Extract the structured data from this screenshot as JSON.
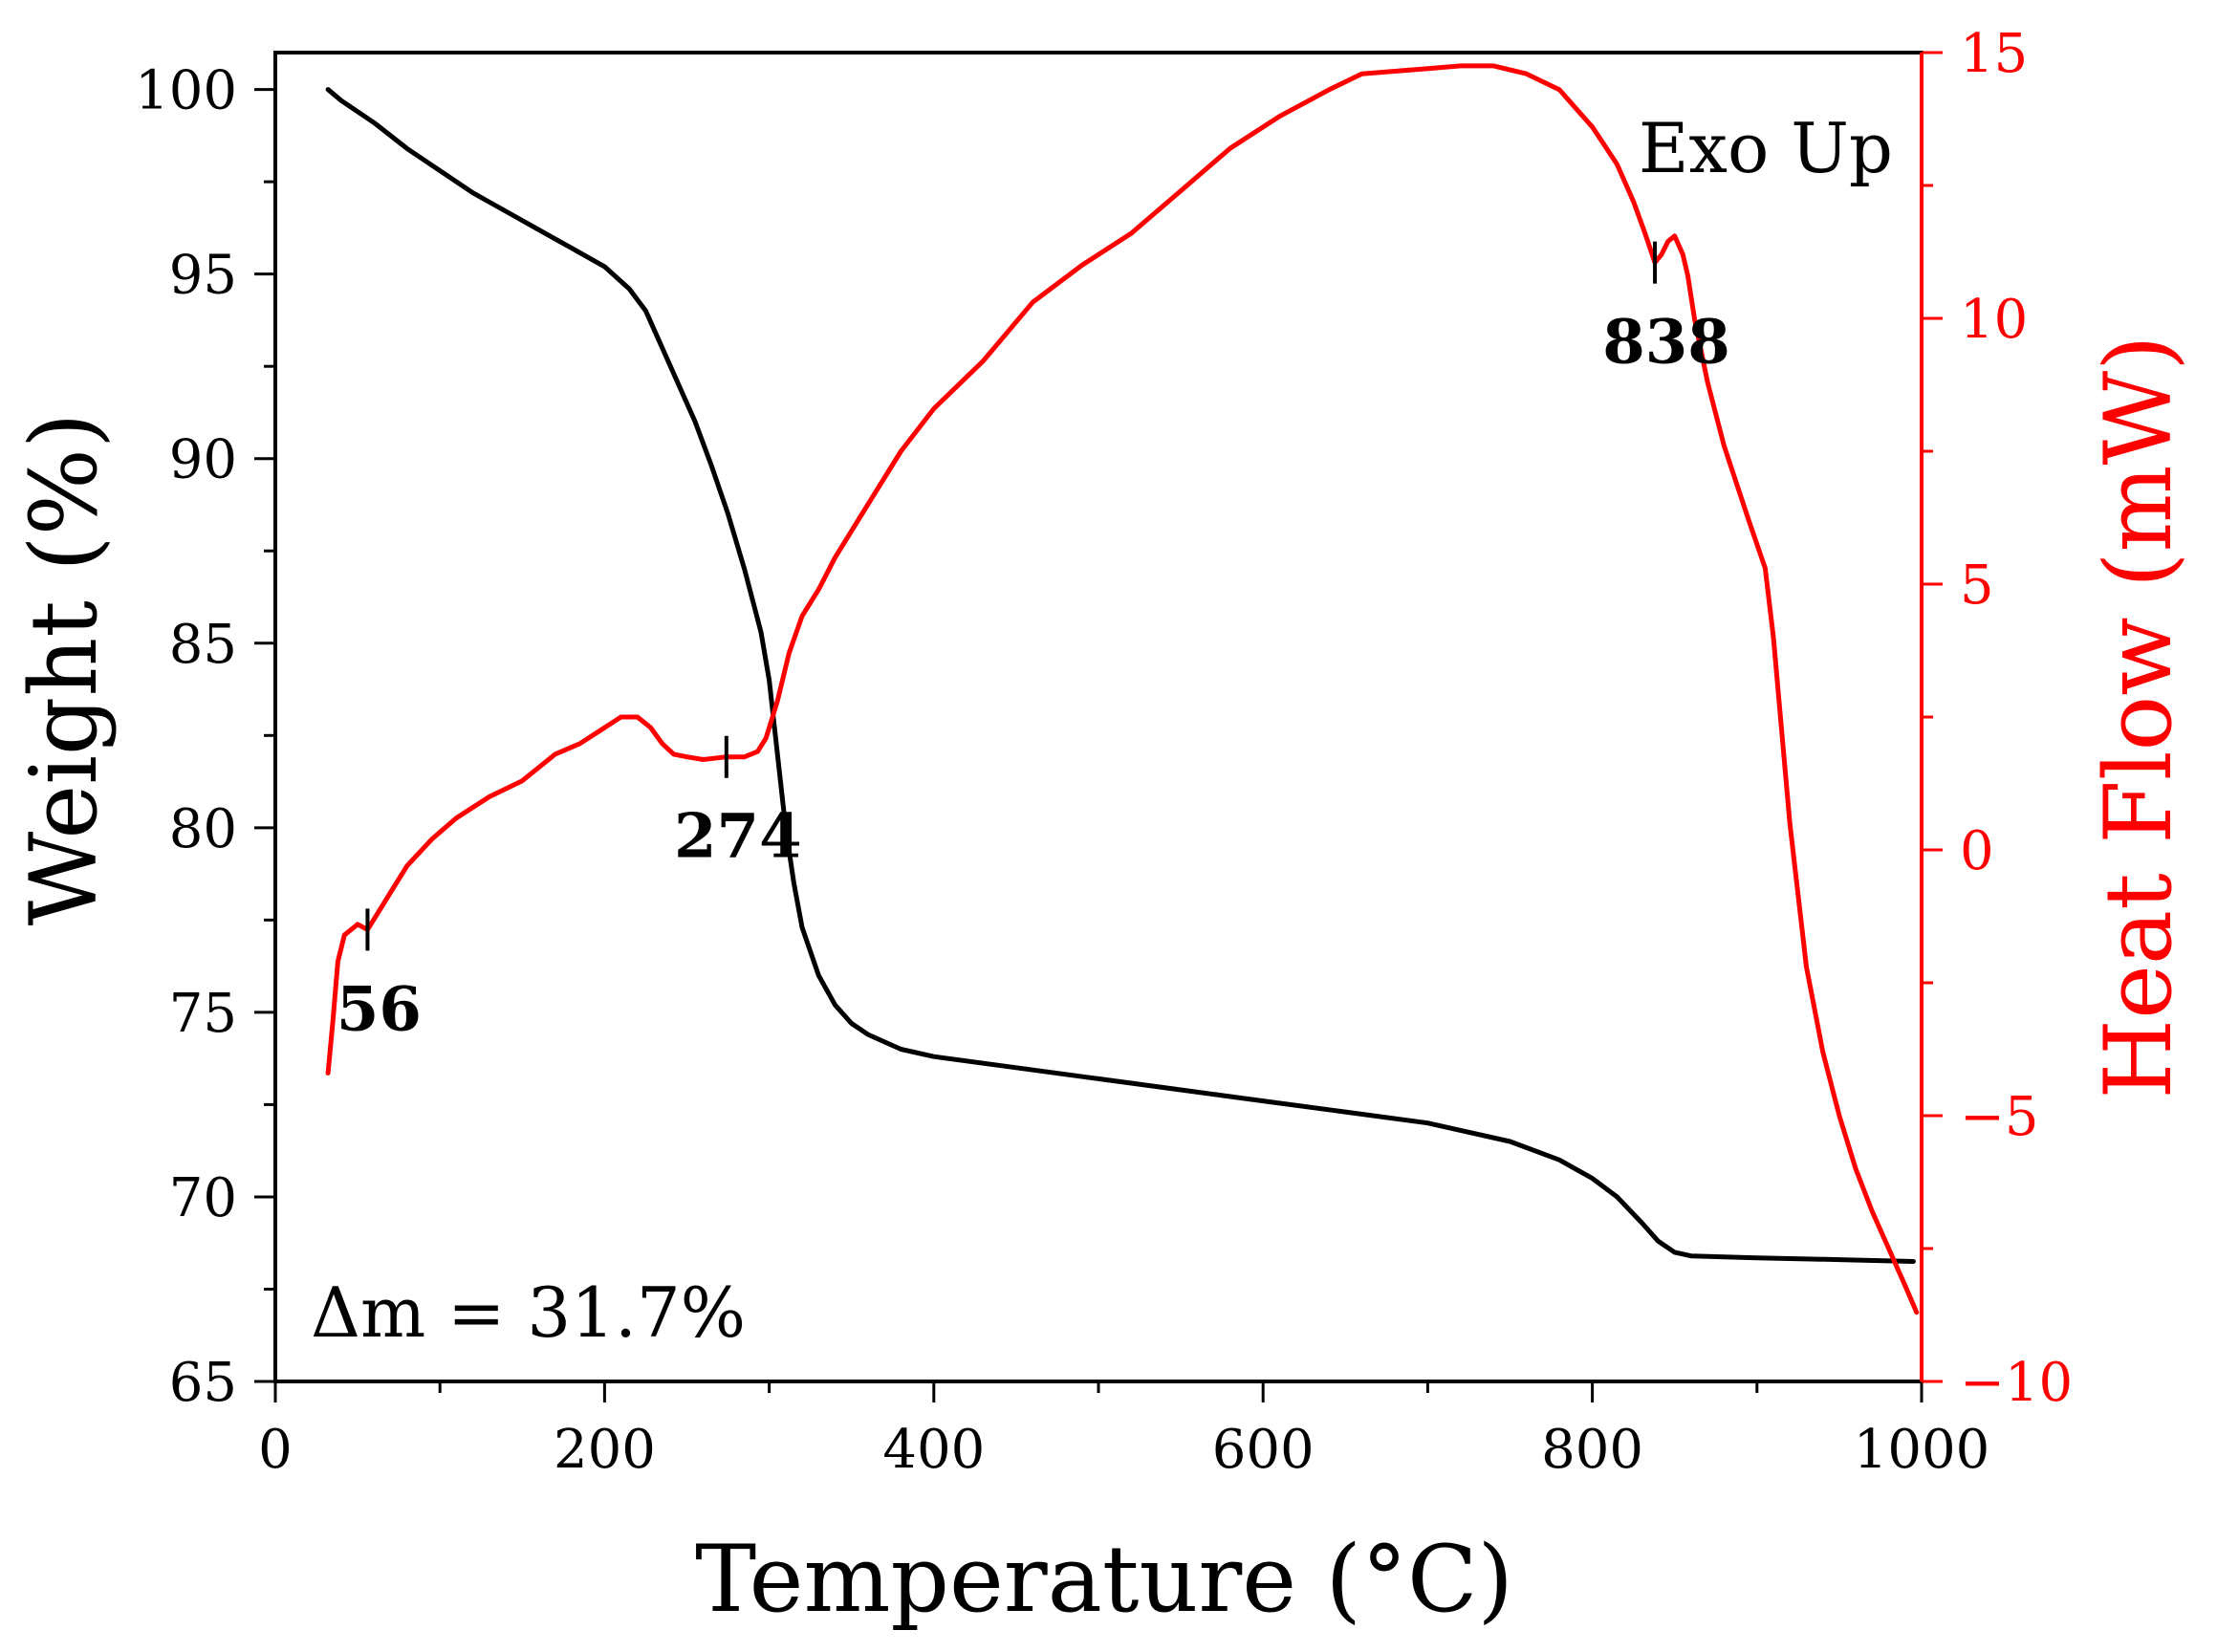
{
  "chart_data": {
    "type": "line",
    "title": "",
    "xlabel": "Temperature (°C)",
    "ylabel": "Weight (%)",
    "y2label": "Heat Flow (mW)",
    "xlim": [
      0,
      1000
    ],
    "ylim": [
      65,
      101
    ],
    "y2lim": [
      -10,
      15
    ],
    "x_ticks": [
      0,
      200,
      400,
      600,
      800,
      1000
    ],
    "y_ticks": [
      65,
      70,
      75,
      80,
      85,
      90,
      95,
      100
    ],
    "y2_ticks": [
      -10,
      -5,
      0,
      5,
      10,
      15
    ],
    "x_tick_labels": [
      "0",
      "200",
      "400",
      "600",
      "800",
      "1000"
    ],
    "y_tick_labels": [
      "65",
      "70",
      "75",
      "80",
      "85",
      "90",
      "95",
      "100"
    ],
    "y2_tick_labels": [
      "−10",
      "−5",
      "0",
      "5",
      "10",
      "15"
    ],
    "grid": false,
    "colors": {
      "weight": "#000000",
      "heat_flow": "#ff0000",
      "axes": "#000000",
      "right_axis": "#ff0000"
    },
    "series": [
      {
        "name": "Weight",
        "axis": "left",
        "color": "#000000",
        "x": [
          32,
          40,
          60,
          80,
          100,
          120,
          140,
          160,
          180,
          200,
          215,
          225,
          235,
          245,
          255,
          265,
          275,
          285,
          295,
          300,
          305,
          310,
          315,
          320,
          330,
          340,
          350,
          360,
          380,
          400,
          450,
          500,
          550,
          600,
          650,
          700,
          750,
          780,
          800,
          815,
          830,
          840,
          850,
          860,
          900,
          950,
          995
        ],
        "y": [
          100.0,
          99.7,
          99.1,
          98.4,
          97.8,
          97.2,
          96.7,
          96.2,
          95.7,
          95.2,
          94.6,
          94.0,
          93.0,
          92.0,
          91.0,
          89.8,
          88.5,
          87.0,
          85.3,
          84.0,
          82.0,
          80.0,
          78.5,
          77.3,
          76.0,
          75.2,
          74.7,
          74.4,
          74.0,
          73.8,
          73.5,
          73.2,
          72.9,
          72.6,
          72.3,
          72.0,
          71.5,
          71.0,
          70.5,
          70.0,
          69.3,
          68.8,
          68.5,
          68.4,
          68.35,
          68.3,
          68.25
        ]
      },
      {
        "name": "Heat Flow",
        "axis": "right",
        "color": "#ff0000",
        "x": [
          32,
          35,
          38,
          42,
          46,
          50,
          56,
          62,
          70,
          80,
          95,
          110,
          130,
          150,
          170,
          185,
          200,
          210,
          220,
          228,
          235,
          242,
          250,
          260,
          274,
          285,
          293,
          298,
          305,
          312,
          320,
          330,
          340,
          350,
          360,
          380,
          400,
          430,
          460,
          490,
          520,
          550,
          580,
          610,
          640,
          660,
          680,
          700,
          720,
          740,
          760,
          780,
          800,
          815,
          825,
          832,
          838,
          842,
          846,
          850,
          855,
          858,
          862,
          870,
          880,
          895,
          905,
          910,
          920,
          930,
          940,
          950,
          960,
          970,
          980,
          990,
          997
        ],
        "y": [
          -4.2,
          -3.2,
          -2.1,
          -1.6,
          -1.5,
          -1.4,
          -1.5,
          -1.2,
          -0.8,
          -0.3,
          0.2,
          0.6,
          1.0,
          1.3,
          1.8,
          2.0,
          2.3,
          2.5,
          2.5,
          2.3,
          2.0,
          1.8,
          1.75,
          1.7,
          1.75,
          1.75,
          1.85,
          2.1,
          2.8,
          3.7,
          4.4,
          4.9,
          5.5,
          6.0,
          6.5,
          7.5,
          8.3,
          9.2,
          10.3,
          11.0,
          11.6,
          12.4,
          13.2,
          13.8,
          14.3,
          14.6,
          14.65,
          14.7,
          14.75,
          14.75,
          14.6,
          14.3,
          13.6,
          12.9,
          12.2,
          11.6,
          11.05,
          11.2,
          11.45,
          11.55,
          11.2,
          10.8,
          10.0,
          8.8,
          7.6,
          6.2,
          5.3,
          4.0,
          0.5,
          -2.2,
          -3.8,
          -5.0,
          -6.0,
          -6.8,
          -7.5,
          -8.2,
          -8.7
        ]
      }
    ],
    "annotations": [
      {
        "label": "56",
        "x": 56,
        "y": -1.5,
        "axis": "right",
        "color": "#000000"
      },
      {
        "label": "274",
        "x": 274,
        "y": 1.75,
        "axis": "right",
        "color": "#000000"
      },
      {
        "label": "838",
        "x": 838,
        "y": 11.05,
        "axis": "right",
        "color": "#000000"
      }
    ],
    "texts": {
      "exo": "Exo Up",
      "delta_m": "Δm = 31.7%"
    }
  }
}
